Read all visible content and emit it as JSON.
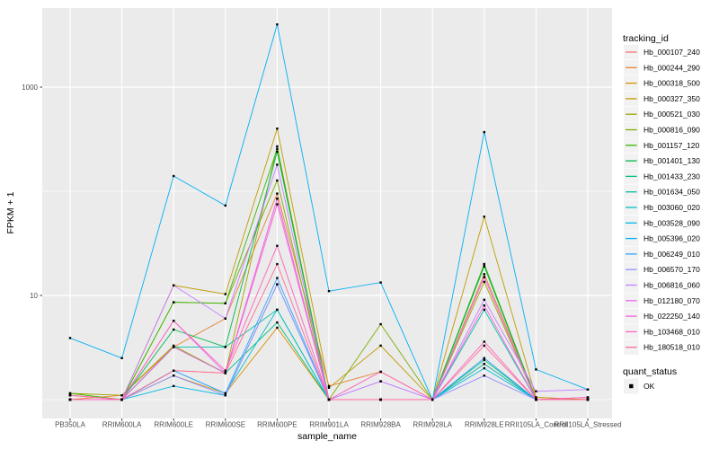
{
  "chart_data": {
    "type": "line",
    "title": "",
    "xlabel": "sample_name",
    "ylabel": "FPKM + 1",
    "y_scale": "log10",
    "y_ticks": [
      10,
      1000
    ],
    "y_minor": [
      1,
      100
    ],
    "ylim_log": [
      0.83,
      3.76
    ],
    "grid": "on",
    "panel_bg": "#EBEBEB",
    "grid_color": "#FFFFFF",
    "tick_color": "#333333",
    "tick_label_color": "#4D4D4D",
    "point_color": "#000000",
    "categories": [
      "PB350LA",
      "RRIM600LA",
      "RRIM600LE",
      "RRIM600SE",
      "RRIM600PE",
      "RRIM901LA",
      "RRIM928BA",
      "RRIM928LA",
      "RRIM928LE",
      "RRII105LA_Control",
      "RRII105LA_Stressed"
    ],
    "series": [
      {
        "name": "Hb_000107_240",
        "color": "#F8766D",
        "values": [
          1.1,
          1.0,
          1.9,
          1.8,
          85,
          1.0,
          1.0,
          1.0,
          15,
          1.0,
          1.0
        ]
      },
      {
        "name": "Hb_000244_290",
        "color": "#EA8331",
        "values": [
          1.0,
          1.1,
          3.2,
          6.0,
          95,
          1.35,
          1.85,
          1.0,
          16,
          1.05,
          1.0
        ]
      },
      {
        "name": "Hb_000318_500",
        "color": "#D89000",
        "values": [
          1.0,
          1.0,
          1.7,
          1.15,
          4.9,
          1.0,
          1.0,
          1.0,
          2.2,
          1.0,
          1.0
        ]
      },
      {
        "name": "Hb_000327_350",
        "color": "#C09B00",
        "values": [
          1.0,
          1.0,
          12.5,
          10.3,
          400,
          1.3,
          3.3,
          1.0,
          57,
          1.05,
          1.0
        ]
      },
      {
        "name": "Hb_000521_030",
        "color": "#A3A500",
        "values": [
          1.15,
          1.1,
          3.3,
          1.8,
          270,
          1.0,
          1.0,
          1.0,
          13.5,
          1.0,
          1.0
        ]
      },
      {
        "name": "Hb_000816_090",
        "color": "#7CAE00",
        "values": [
          1.0,
          1.0,
          8.6,
          8.4,
          127,
          1.0,
          5.3,
          1.0,
          20,
          1.0,
          1.0
        ]
      },
      {
        "name": "Hb_001157_120",
        "color": "#39B600",
        "values": [
          1.15,
          1.0,
          8.6,
          8.4,
          255,
          1.0,
          1.0,
          1.0,
          20,
          1.0,
          1.0
        ]
      },
      {
        "name": "Hb_001401_130",
        "color": "#00BB4E",
        "values": [
          1.0,
          1.0,
          4.7,
          3.2,
          240,
          1.0,
          1.0,
          1.0,
          19,
          1.0,
          1.0
        ]
      },
      {
        "name": "Hb_001433_230",
        "color": "#00BF7D",
        "values": [
          1.0,
          1.0,
          3.2,
          1.8,
          5.5,
          1.0,
          1.0,
          1.0,
          2.4,
          1.0,
          1.0
        ]
      },
      {
        "name": "Hb_001634_050",
        "color": "#00C1A3",
        "values": [
          1.0,
          1.0,
          3.2,
          3.2,
          7.3,
          1.0,
          1.0,
          1.0,
          7.3,
          1.0,
          1.0
        ]
      },
      {
        "name": "Hb_003060_020",
        "color": "#00BFC4",
        "values": [
          1.0,
          1.0,
          1.9,
          1.15,
          7.3,
          1.0,
          1.0,
          1.0,
          2.2,
          1.0,
          1.0
        ]
      },
      {
        "name": "Hb_003528_090",
        "color": "#00BAE0",
        "values": [
          1.0,
          1.0,
          1.35,
          1.1,
          12.8,
          1.0,
          1.0,
          1.0,
          2.0,
          1.0,
          1.0
        ]
      },
      {
        "name": "Hb_005396_020",
        "color": "#00B0F6",
        "values": [
          3.9,
          2.5,
          140,
          73,
          4000,
          11,
          13.3,
          1.0,
          370,
          1.95,
          1.25
        ]
      },
      {
        "name": "Hb_006249_010",
        "color": "#35A2FF",
        "values": [
          1.0,
          1.0,
          1.9,
          1.15,
          14.7,
          1.0,
          1.0,
          1.0,
          2.5,
          1.0,
          1.0
        ]
      },
      {
        "name": "Hb_006570_170",
        "color": "#9590FF",
        "values": [
          1.0,
          1.0,
          1.7,
          1.1,
          12.8,
          1.0,
          1.5,
          1.0,
          1.7,
          1.0,
          1.0
        ]
      },
      {
        "name": "Hb_006816_060",
        "color": "#C77CFF",
        "values": [
          1.0,
          1.0,
          12.5,
          6.0,
          180,
          1.0,
          1.5,
          1.0,
          9.1,
          1.2,
          1.25
        ]
      },
      {
        "name": "Hb_012180_070",
        "color": "#E76BF3",
        "values": [
          1.1,
          1.0,
          5.7,
          1.8,
          85,
          1.0,
          1.0,
          1.0,
          15,
          1.0,
          1.05
        ]
      },
      {
        "name": "Hb_022250_140",
        "color": "#FA62DB",
        "values": [
          1.0,
          1.0,
          3.2,
          1.8,
          75,
          1.0,
          1.0,
          1.0,
          8.0,
          1.0,
          1.0
        ]
      },
      {
        "name": "Hb_103468_010",
        "color": "#FF62BC",
        "values": [
          1.0,
          1.0,
          5.7,
          1.9,
          30,
          1.0,
          1.85,
          1.0,
          3.6,
          1.0,
          1.05
        ]
      },
      {
        "name": "Hb_180518_010",
        "color": "#FF6A98",
        "values": [
          1.1,
          1.0,
          1.9,
          1.8,
          20,
          1.0,
          1.0,
          1.0,
          3.3,
          1.0,
          1.0
        ]
      }
    ],
    "legend": {
      "color_title": "tracking_id",
      "shape_title": "quant_status",
      "shape_items": [
        {
          "label": "OK"
        }
      ],
      "key_bg": "#F2F2F2"
    }
  }
}
